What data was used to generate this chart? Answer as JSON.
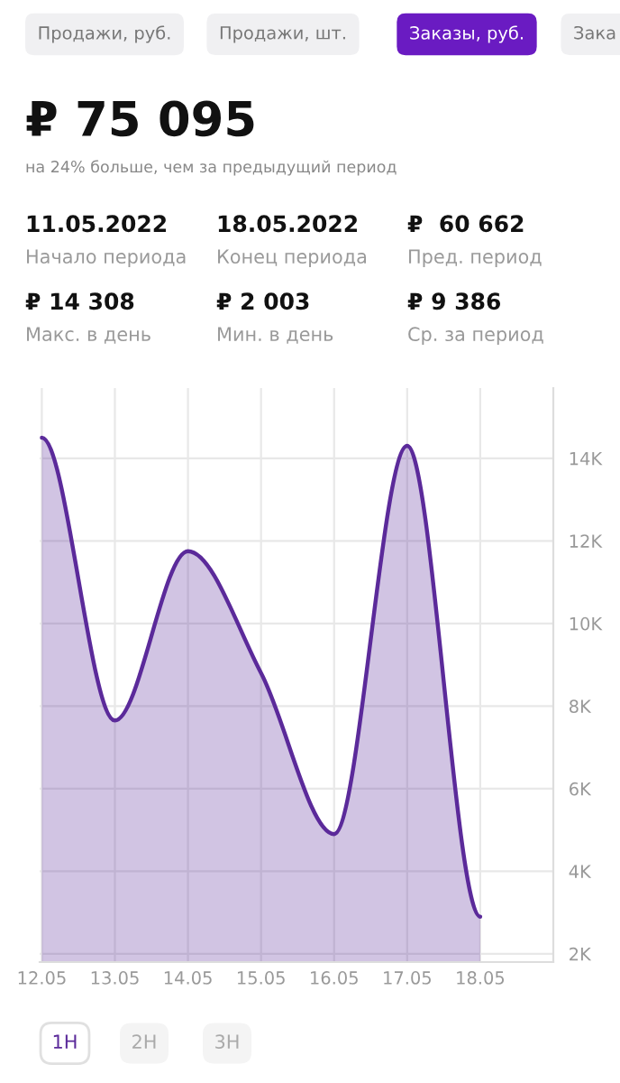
{
  "chart_data": {
    "type": "area",
    "title": "₽ 75 095",
    "subtitle": "на 24% больше, чем за предыдущий период",
    "categories": [
      "12.05",
      "13.05",
      "14.05",
      "15.05",
      "16.05",
      "17.05",
      "18.05"
    ],
    "series": [
      {
        "color": "#5b2a9a",
        "values": [
          14500,
          7650,
          11750,
          8800,
          4900,
          14300,
          2900
        ]
      }
    ],
    "ylim": [
      1800,
      15700
    ],
    "yticks": [
      {
        "value": 2000,
        "label": "2K"
      },
      {
        "value": 4000,
        "label": "4K"
      },
      {
        "value": 6000,
        "label": "6K"
      },
      {
        "value": 8000,
        "label": "8K"
      },
      {
        "value": 10000,
        "label": "10K"
      },
      {
        "value": 12000,
        "label": "12K"
      },
      {
        "value": 14000,
        "label": "14K"
      }
    ],
    "grid": true,
    "legend": false,
    "annotations": [
      "Продажи, руб.",
      "Продажи, шт.",
      "Заказы, руб.",
      "Зака",
      "11.05.2022",
      "Начало периода",
      "18.05.2022",
      "Конец периода",
      "₽  60 662",
      "Пред. период",
      "₽ 14 308",
      "Макс. в день",
      "₽ 2 003",
      "Мин. в день",
      "₽ 9 386",
      "Ср. за период",
      "1Н",
      "2Н",
      "3Н"
    ]
  }
}
